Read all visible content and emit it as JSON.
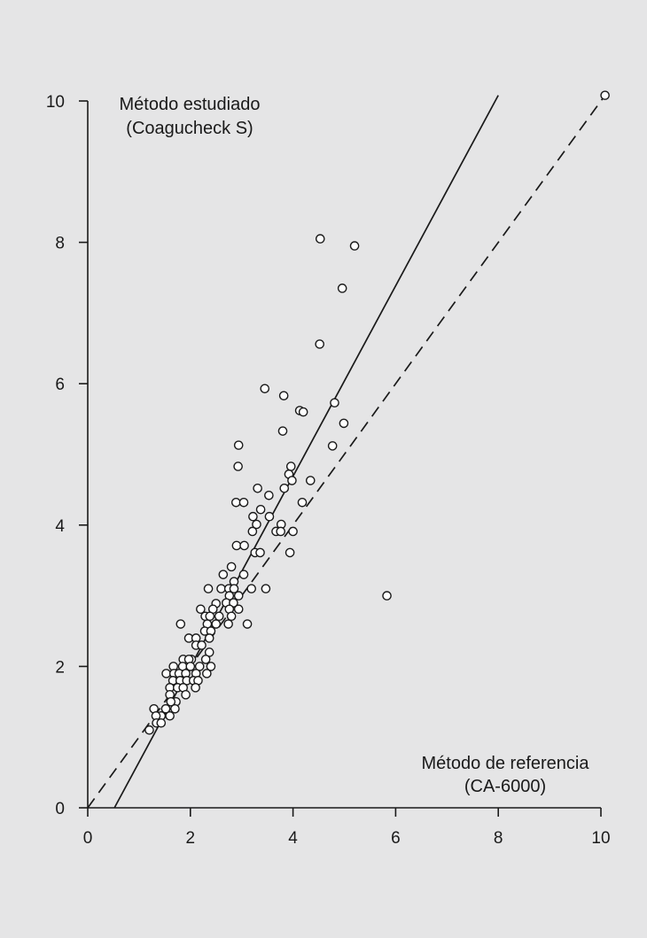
{
  "chart_data": {
    "type": "scatter",
    "ylabel": [
      "Método estudiado",
      "(Coagucheck S)"
    ],
    "xlabel": [
      "Método de referencia",
      "(CA-6000)"
    ],
    "xlim": [
      0,
      10
    ],
    "ylim": [
      0,
      10
    ],
    "x_ticks": [
      0,
      2,
      4,
      6,
      8,
      10
    ],
    "y_ticks": [
      0,
      2,
      4,
      6,
      8,
      10
    ],
    "grid": false,
    "colors": {
      "background": "#e5e5e6",
      "ink": "#1a1a1a",
      "marker_fill": "#ffffff"
    },
    "lines": [
      {
        "style": "solid",
        "from": [
          0.52,
          0
        ],
        "to": [
          8.0,
          10.08
        ]
      },
      {
        "style": "dashed",
        "from": [
          0,
          0
        ],
        "to": [
          10.1,
          10.1
        ]
      }
    ],
    "points": [
      [
        10.08,
        10.08
      ],
      [
        4.53,
        8.05
      ],
      [
        5.2,
        7.95
      ],
      [
        4.96,
        7.35
      ],
      [
        4.52,
        6.56
      ],
      [
        3.45,
        5.93
      ],
      [
        3.82,
        5.83
      ],
      [
        4.13,
        5.62
      ],
      [
        4.2,
        5.6
      ],
      [
        4.81,
        5.73
      ],
      [
        3.8,
        5.33
      ],
      [
        4.99,
        5.44
      ],
      [
        4.77,
        5.12
      ],
      [
        2.94,
        5.13
      ],
      [
        2.93,
        4.83
      ],
      [
        3.96,
        4.83
      ],
      [
        3.92,
        4.72
      ],
      [
        3.98,
        4.63
      ],
      [
        4.34,
        4.63
      ],
      [
        3.31,
        4.52
      ],
      [
        3.83,
        4.52
      ],
      [
        3.53,
        4.42
      ],
      [
        2.89,
        4.32
      ],
      [
        3.04,
        4.32
      ],
      [
        4.18,
        4.32
      ],
      [
        3.37,
        4.22
      ],
      [
        3.22,
        4.12
      ],
      [
        3.54,
        4.12
      ],
      [
        3.29,
        4.01
      ],
      [
        3.77,
        4.01
      ],
      [
        3.21,
        3.91
      ],
      [
        3.67,
        3.91
      ],
      [
        3.76,
        3.91
      ],
      [
        4.0,
        3.91
      ],
      [
        2.9,
        3.71
      ],
      [
        3.05,
        3.71
      ],
      [
        3.26,
        3.61
      ],
      [
        3.36,
        3.61
      ],
      [
        3.94,
        3.61
      ],
      [
        2.8,
        3.41
      ],
      [
        2.64,
        3.3
      ],
      [
        3.04,
        3.3
      ],
      [
        2.85,
        3.2
      ],
      [
        2.35,
        3.1
      ],
      [
        2.6,
        3.1
      ],
      [
        2.75,
        3.1
      ],
      [
        2.85,
        3.1
      ],
      [
        3.19,
        3.1
      ],
      [
        3.47,
        3.1
      ],
      [
        2.76,
        3.0
      ],
      [
        2.94,
        3.0
      ],
      [
        2.7,
        2.9
      ],
      [
        2.84,
        2.9
      ],
      [
        2.5,
        2.89
      ],
      [
        2.44,
        2.81
      ],
      [
        2.2,
        2.81
      ],
      [
        2.76,
        2.81
      ],
      [
        2.94,
        2.81
      ],
      [
        2.29,
        2.71
      ],
      [
        2.38,
        2.71
      ],
      [
        2.56,
        2.71
      ],
      [
        2.8,
        2.71
      ],
      [
        1.81,
        2.6
      ],
      [
        2.33,
        2.6
      ],
      [
        2.5,
        2.6
      ],
      [
        2.74,
        2.6
      ],
      [
        3.11,
        2.6
      ],
      [
        2.28,
        2.5
      ],
      [
        2.4,
        2.5
      ],
      [
        1.97,
        2.4
      ],
      [
        2.11,
        2.4
      ],
      [
        2.37,
        2.4
      ],
      [
        2.11,
        2.3
      ],
      [
        2.22,
        2.3
      ],
      [
        2.37,
        2.2
      ],
      [
        2.02,
        2.1
      ],
      [
        1.86,
        2.1
      ],
      [
        1.97,
        2.1
      ],
      [
        2.3,
        2.1
      ],
      [
        1.67,
        2.0
      ],
      [
        1.85,
        2.0
      ],
      [
        2.0,
        2.0
      ],
      [
        2.18,
        2.0
      ],
      [
        2.4,
        2.0
      ],
      [
        1.53,
        1.9
      ],
      [
        1.68,
        1.9
      ],
      [
        1.78,
        1.9
      ],
      [
        1.91,
        1.9
      ],
      [
        2.11,
        1.9
      ],
      [
        2.32,
        1.9
      ],
      [
        1.66,
        1.8
      ],
      [
        1.8,
        1.8
      ],
      [
        1.93,
        1.8
      ],
      [
        2.06,
        1.8
      ],
      [
        2.15,
        1.8
      ],
      [
        1.6,
        1.7
      ],
      [
        1.75,
        1.7
      ],
      [
        1.86,
        1.7
      ],
      [
        2.1,
        1.7
      ],
      [
        1.6,
        1.6
      ],
      [
        1.91,
        1.6
      ],
      [
        1.72,
        1.5
      ],
      [
        1.62,
        1.5
      ],
      [
        1.52,
        1.4
      ],
      [
        1.7,
        1.4
      ],
      [
        1.29,
        1.4
      ],
      [
        1.43,
        1.3
      ],
      [
        1.33,
        1.3
      ],
      [
        1.6,
        1.3
      ],
      [
        1.34,
        1.2
      ],
      [
        1.43,
        1.2
      ],
      [
        1.2,
        1.1
      ],
      [
        5.83,
        3.0
      ]
    ]
  }
}
